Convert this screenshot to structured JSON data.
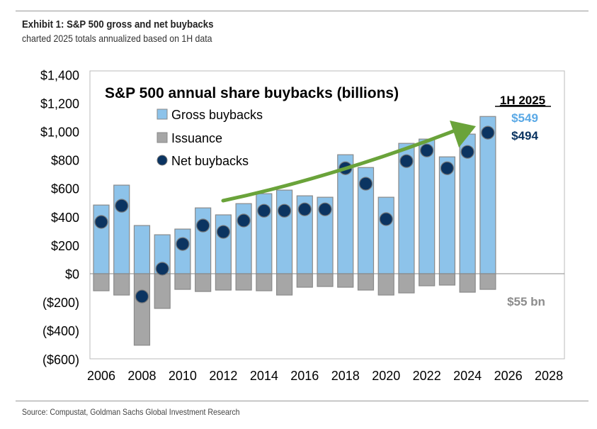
{
  "header": {
    "title": "Exhibit 1: S&P 500 gross and net buybacks",
    "subtitle": "charted 2025 totals annualized based on 1H data"
  },
  "source": "Source: Compustat, Goldman Sachs Global Investment Research",
  "chart_data": {
    "type": "bar",
    "title": "S&P 500 annual share buybacks (billions)",
    "x": [
      2006,
      2007,
      2008,
      2009,
      2010,
      2011,
      2012,
      2013,
      2014,
      2015,
      2016,
      2017,
      2018,
      2019,
      2020,
      2021,
      2022,
      2023,
      2024,
      2025
    ],
    "series": [
      {
        "name": "Gross buybacks",
        "kind": "bar",
        "color": "#8dc3ea",
        "values": [
          483,
          623,
          339,
          274,
          314,
          463,
          414,
          493,
          563,
          588,
          548,
          538,
          837,
          747,
          538,
          917,
          947,
          822,
          982,
          1106
        ]
      },
      {
        "name": "Issuance",
        "kind": "bar",
        "color": "#a6a6a6",
        "values": [
          -120,
          -150,
          -503,
          -244,
          -110,
          -125,
          -115,
          -115,
          -120,
          -150,
          -95,
          -90,
          -95,
          -115,
          -150,
          -135,
          -85,
          -80,
          -130,
          -110
        ]
      },
      {
        "name": "Net buybacks",
        "kind": "scatter",
        "color": "#0b3461",
        "values": [
          364,
          478,
          -160,
          35,
          209,
          339,
          294,
          374,
          443,
          443,
          453,
          453,
          742,
          633,
          384,
          792,
          867,
          742,
          857,
          992
        ]
      }
    ],
    "xlim": [
      2005.5,
      2028.8
    ],
    "ylim": [
      -600,
      1400
    ],
    "xticks": [
      2006,
      2008,
      2010,
      2012,
      2014,
      2016,
      2018,
      2020,
      2022,
      2024,
      2026,
      2028
    ],
    "yticks": [
      -600,
      -400,
      -200,
      0,
      200,
      400,
      600,
      800,
      1000,
      1200,
      1400
    ],
    "ytick_labels": [
      "($600)",
      "($400)",
      "($200)",
      "$0",
      "$200",
      "$400",
      "$600",
      "$800",
      "$1,000",
      "$1,200",
      "$1,400"
    ],
    "legend_position": "top-left",
    "annotations": {
      "period": "1H 2025",
      "gross": "$549",
      "net": "$494",
      "issuance": "$55 bn",
      "gross_color": "#5aa9e6",
      "net_color": "#0b3461",
      "issuance_color": "#8c8c8c",
      "arrow_color": "#6aa33a"
    }
  }
}
